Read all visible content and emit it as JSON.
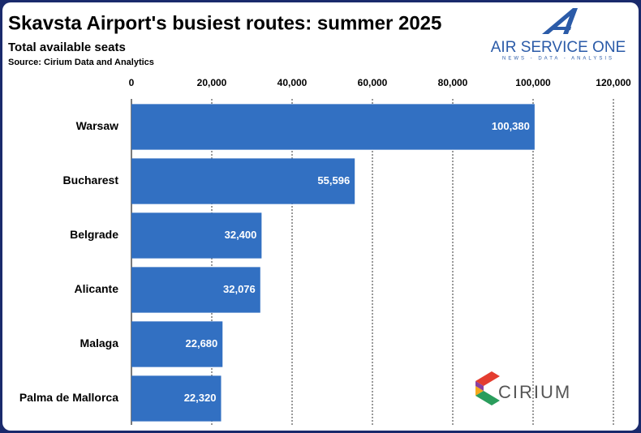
{
  "chart_data": {
    "type": "hbar",
    "title": "Skavsta Airport's busiest routes: summer 2025",
    "subtitle": "Total available seats",
    "source": "Source: Cirium Data and Analytics",
    "logos": [
      "AIR SERVICE ONE",
      "NEWS - DATA - ANALYSIS",
      "CIRIUM"
    ],
    "categories": [
      "Warsaw",
      "Bucharest",
      "Belgrade",
      "Alicante",
      "Malaga",
      "Palma de Mallorca"
    ],
    "values": [
      100380,
      55596,
      32400,
      32076,
      22680,
      22320
    ],
    "value_labels": [
      "100,380",
      "55,596",
      "32,400",
      "32,076",
      "22,680",
      "22,320"
    ],
    "color": "#3270c2",
    "xlim": [
      0,
      120000
    ],
    "xticks": [
      0,
      {
        "value": 20000,
        "label": "20,000"
      },
      {
        "value": 40000,
        "label": "40,000"
      },
      {
        "value": 60000,
        "label": "60,000"
      },
      {
        "value": 80000,
        "label": "80,000"
      },
      {
        "value": 100000,
        "label": "100,000"
      },
      {
        "value": 120000,
        "label": "120,000"
      }
    ],
    "grid": true
  }
}
